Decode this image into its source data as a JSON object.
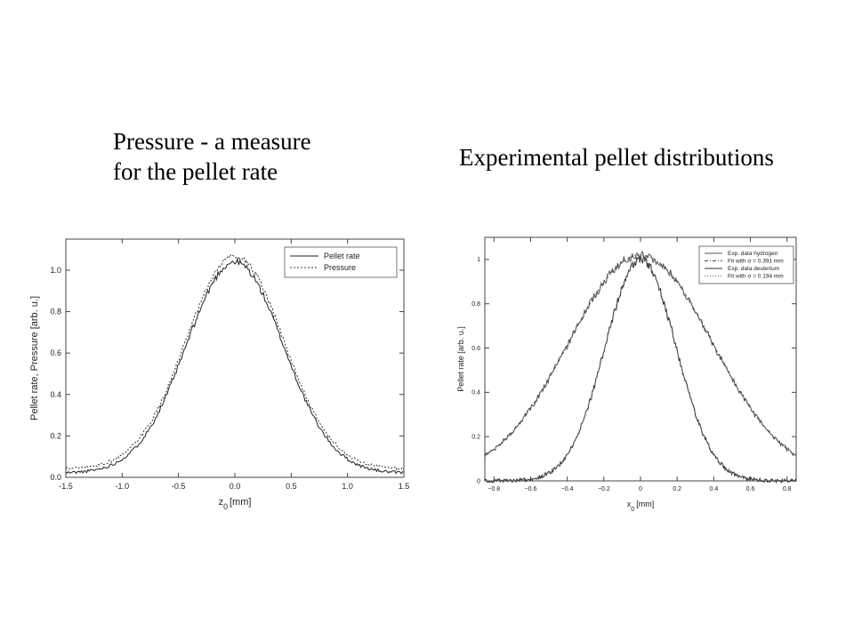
{
  "slide": {
    "left_caption_line1": "Pressure - a measure",
    "left_caption_line2": "for the pellet rate",
    "right_caption": "Experimental pellet distributions"
  },
  "chart_data": [
    {
      "type": "line",
      "title": "",
      "xlabel_main": "z",
      "xlabel_sub": "0",
      "xlabel_unit": "[mm]",
      "ylabel": "Pellet rate, Pressure [arb. u.]",
      "xlim": [
        -1.5,
        1.5
      ],
      "ylim": [
        0.0,
        1.15
      ],
      "x_ticks": [
        -1.5,
        -1.0,
        -0.5,
        0.0,
        0.5,
        1.0,
        1.5
      ],
      "x_tick_labels": [
        "-1.5",
        "-1.0",
        "-0.5",
        "0.0",
        "0.5",
        "1.0",
        "1.5"
      ],
      "y_ticks": [
        0.0,
        0.2,
        0.4,
        0.6,
        0.8,
        1.0
      ],
      "y_tick_labels": [
        "0.0",
        "0.2",
        "0.4",
        "0.6",
        "0.8",
        "1.0"
      ],
      "grid": false,
      "legend": "top-right",
      "series": [
        {
          "name": "Pellet rate",
          "style": "solid",
          "gaussian": {
            "amplitude": 1.02,
            "sigma": 0.43,
            "offset": 0.02
          }
        },
        {
          "name": "Pressure",
          "style": "dotted",
          "gaussian": {
            "amplitude": 1.03,
            "sigma": 0.43,
            "offset": 0.04
          }
        }
      ]
    },
    {
      "type": "line",
      "title": "",
      "xlabel_main": "x",
      "xlabel_sub": "0",
      "xlabel_unit": "[mm]",
      "ylabel": "Pellet rate [arb. u.]",
      "xlim": [
        -0.85,
        0.85
      ],
      "ylim": [
        0.0,
        1.1
      ],
      "x_ticks": [
        -0.8,
        -0.6,
        -0.4,
        -0.2,
        0,
        0.2,
        0.4,
        0.6,
        0.8
      ],
      "x_tick_labels": [
        "−0.8",
        "−0.6",
        "−0.4",
        "−0.2",
        "0",
        "0.2",
        "0.4",
        "0.6",
        "0.8"
      ],
      "y_ticks": [
        0,
        0.2,
        0.4,
        0.6,
        0.8,
        1
      ],
      "y_tick_labels": [
        "0",
        "0.2",
        "0.4",
        "0.6",
        "0.8",
        "1"
      ],
      "grid": false,
      "legend": "top-right",
      "series": [
        {
          "name": "Exp. data hydrogen",
          "style": "solid",
          "gaussian": {
            "amplitude": 1.0,
            "sigma": 0.391,
            "offset": 0.02
          }
        },
        {
          "name": "Fit with σ = 0.391 mm",
          "style": "dashdot",
          "gaussian": {
            "amplitude": 1.0,
            "sigma": 0.391,
            "offset": 0.02
          }
        },
        {
          "name": "Exp. data deuterium",
          "style": "solid",
          "gaussian": {
            "amplitude": 1.0,
            "sigma": 0.194,
            "offset": 0.0
          }
        },
        {
          "name": "Fit with σ = 0.194 mm",
          "style": "dotted",
          "gaussian": {
            "amplitude": 1.0,
            "sigma": 0.194,
            "offset": 0.0
          }
        }
      ]
    }
  ]
}
